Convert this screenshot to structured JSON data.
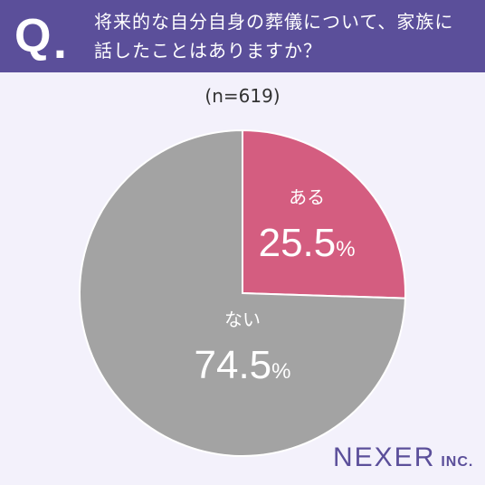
{
  "header": {
    "q_letter": "Q",
    "q_dot": ".",
    "question_line1": "将来的な自分自身の葬儀について、家族に",
    "question_line2": "話したことはありますか？"
  },
  "sample_size": "(n=619)",
  "logo": {
    "main": "NEXER",
    "sub": "INC."
  },
  "colors": {
    "header_bg": "#5b4f9a",
    "background": "#f3f1fb",
    "yes": "#d45d80",
    "no": "#a3a3a3"
  },
  "chart_data": {
    "type": "pie",
    "slices": [
      {
        "label": "ある",
        "value": 25.5,
        "value_text": "25.5",
        "unit": "%",
        "color": "#d45d80"
      },
      {
        "label": "ない",
        "value": 74.5,
        "value_text": "74.5",
        "unit": "%",
        "color": "#a3a3a3"
      }
    ],
    "start": "12 o'clock, clockwise"
  }
}
